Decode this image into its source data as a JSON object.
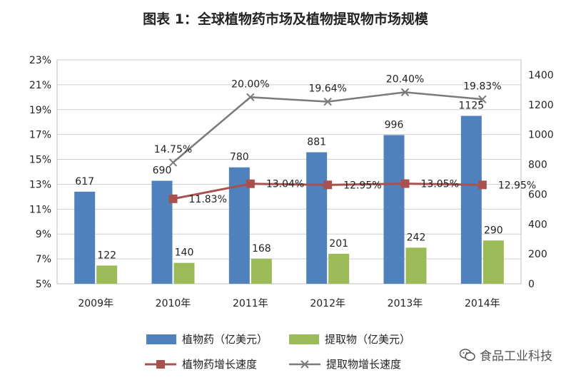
{
  "title": "图表 1：全球植物药市场及植物提取物市场规模",
  "watermark": "食品工业科技",
  "legend": {
    "bar1": "植物药（亿美元）",
    "bar2": "提取物（亿美元）",
    "line1": "植物药增长速度",
    "line2": "提取物增长速度"
  },
  "chart_data": {
    "type": "bar",
    "categories": [
      "2009年",
      "2010年",
      "2011年",
      "2012年",
      "2013年",
      "2014年"
    ],
    "series": [
      {
        "name": "植物药（亿美元）",
        "type": "bar",
        "axis": "right",
        "color": "#4F81BD",
        "values": [
          617,
          690,
          780,
          881,
          996,
          1125
        ],
        "labels": [
          "617",
          "690",
          "780",
          "881",
          "996",
          "1125"
        ]
      },
      {
        "name": "提取物（亿美元）",
        "type": "bar",
        "axis": "right",
        "color": "#9BBB59",
        "values": [
          122,
          140,
          168,
          201,
          242,
          290
        ],
        "labels": [
          "122",
          "140",
          "168",
          "201",
          "242",
          "290"
        ]
      },
      {
        "name": "植物药增长速度",
        "type": "line",
        "axis": "left",
        "color": "#A9514F",
        "values": [
          null,
          11.83,
          13.04,
          12.95,
          13.05,
          12.95
        ],
        "labels": [
          "",
          "11.83%",
          "13.04%",
          "12.95%",
          "13.05%",
          "12.95%"
        ]
      },
      {
        "name": "提取物增长速度",
        "type": "line",
        "axis": "left",
        "color": "#7A7A7A",
        "values": [
          null,
          14.75,
          20.0,
          19.64,
          20.4,
          19.83
        ],
        "labels": [
          "",
          "14.75%",
          "20.00%",
          "19.64%",
          "20.40%",
          "19.83%"
        ]
      }
    ],
    "left_axis": {
      "min": 5,
      "max": 23,
      "ticks": [
        "5%",
        "7%",
        "9%",
        "11%",
        "13%",
        "15%",
        "17%",
        "19%",
        "21%",
        "23%"
      ]
    },
    "right_axis": {
      "min": 0,
      "max": 1500,
      "ticks": [
        "0",
        "200",
        "400",
        "600",
        "800",
        "1000",
        "1200",
        "1400"
      ]
    },
    "grid": true,
    "legend_position": "bottom"
  }
}
